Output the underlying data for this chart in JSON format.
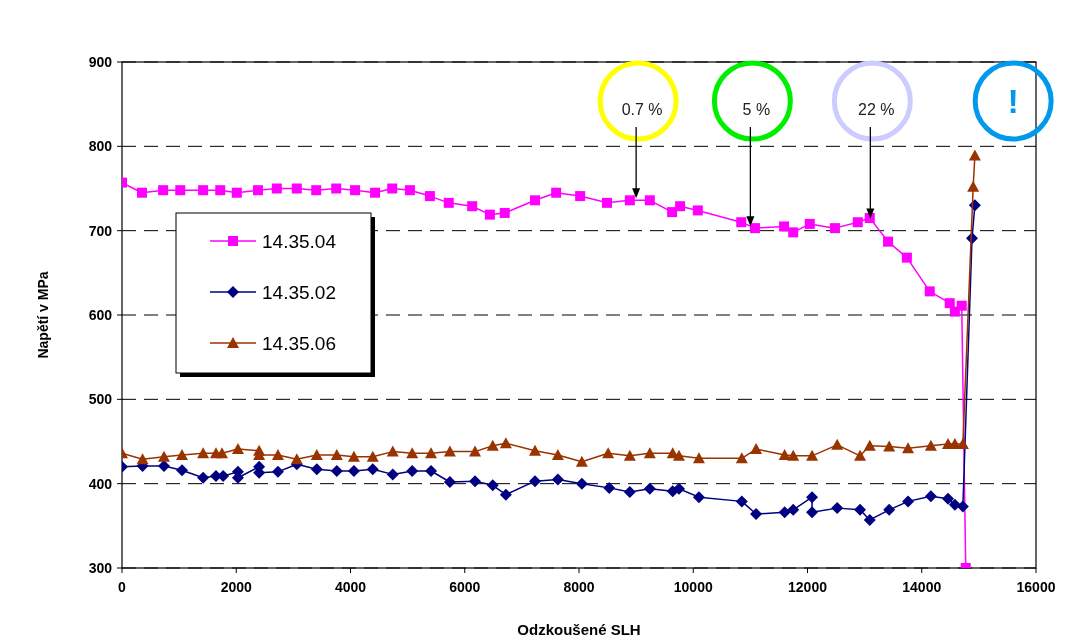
{
  "chart_data": {
    "type": "line",
    "xlabel": "Odzkoušené SLH",
    "ylabel": "Napětí v MPa",
    "xlim": [
      0,
      16000
    ],
    "xticks": [
      0,
      2000,
      4000,
      6000,
      8000,
      10000,
      12000,
      14000,
      16000
    ],
    "ylim": [
      300,
      900
    ],
    "yticks": [
      300,
      400,
      500,
      600,
      700,
      800,
      900
    ],
    "grid": "y",
    "legend": "left",
    "line_style": "solid",
    "series": [
      {
        "name": "14.35.04",
        "color": "#ff00ff",
        "marker": "square",
        "x": [
          0,
          350,
          720,
          1020,
          1420,
          1720,
          2010,
          2380,
          2710,
          3060,
          3400,
          3750,
          4080,
          4430,
          4730,
          5040,
          5390,
          5720,
          6130,
          6440,
          6700,
          7230,
          7600,
          8020,
          8490,
          8890,
          9240,
          9630,
          9770,
          10080,
          10840,
          11080,
          11590,
          11750,
          12040,
          12480,
          12880,
          13090,
          13410,
          13740,
          14140,
          14490,
          14580,
          14700,
          14770
        ],
        "values": [
          757,
          745,
          748,
          748,
          748,
          748,
          745,
          748,
          750,
          750,
          748,
          750,
          748,
          745,
          750,
          748,
          741,
          733,
          729,
          719,
          721,
          736,
          745,
          741,
          733,
          736,
          736,
          722,
          729,
          724,
          710,
          703,
          705,
          698,
          708,
          703,
          710,
          715,
          687,
          668,
          628,
          614,
          604,
          611,
          300
        ]
      },
      {
        "name": "14.35.02",
        "color": "#000080",
        "marker": "diamond",
        "x": [
          0,
          360,
          735,
          1050,
          1420,
          1645,
          1770,
          2030,
          2030,
          2400,
          2400,
          2730,
          3060,
          3410,
          3760,
          4060,
          4390,
          4740,
          5080,
          5410,
          5740,
          6180,
          6490,
          6720,
          7230,
          7630,
          8050,
          8530,
          8890,
          9240,
          9640,
          9750,
          10100,
          10850,
          11100,
          11600,
          11750,
          12080,
          12080,
          12520,
          12920,
          13090,
          13430,
          13760,
          14160,
          14460,
          14580,
          14720,
          14880,
          14930
        ],
        "values": [
          420,
          421,
          421,
          416,
          407,
          409,
          409,
          414,
          407,
          420,
          413,
          414,
          423,
          417,
          415,
          415,
          417,
          411,
          415,
          415,
          402,
          403,
          398,
          387,
          403,
          405,
          400,
          395,
          390,
          394,
          391,
          394,
          384,
          379,
          364,
          366,
          369,
          384,
          366,
          371,
          369,
          357,
          369,
          379,
          385,
          382,
          375,
          373,
          691,
          730
        ]
      },
      {
        "name": "14.35.06",
        "color": "#993300",
        "marker": "triangle",
        "x": [
          0,
          360,
          735,
          1050,
          1420,
          1645,
          1750,
          2030,
          2400,
          2400,
          2730,
          3060,
          3410,
          3760,
          4060,
          4390,
          4740,
          5080,
          5410,
          5740,
          6180,
          6490,
          6720,
          7230,
          7630,
          8050,
          8510,
          8890,
          9240,
          9640,
          9750,
          10100,
          10850,
          11100,
          11600,
          11750,
          12080,
          12520,
          12920,
          13090,
          13430,
          13760,
          14160,
          14460,
          14580,
          14720,
          14900,
          14930
        ],
        "values": [
          436,
          429,
          432,
          434,
          436,
          436,
          436,
          441,
          439,
          434,
          434,
          429,
          434,
          434,
          432,
          432,
          438,
          436,
          436,
          438,
          438,
          445,
          448,
          439,
          434,
          426,
          436,
          433,
          436,
          436,
          433,
          430,
          430,
          441,
          434,
          433,
          433,
          446,
          433,
          445,
          444,
          442,
          445,
          447,
          447,
          447,
          752,
          789
        ]
      }
    ],
    "annotations": [
      {
        "text": "0.7 %",
        "x": 9000,
        "y": 736
      },
      {
        "text": "5 %",
        "x": 11000,
        "y": 703
      },
      {
        "text": "22 %",
        "x": 13100,
        "y": 712
      },
      {
        "text": "!",
        "x": 14900,
        "y": 789
      }
    ]
  }
}
